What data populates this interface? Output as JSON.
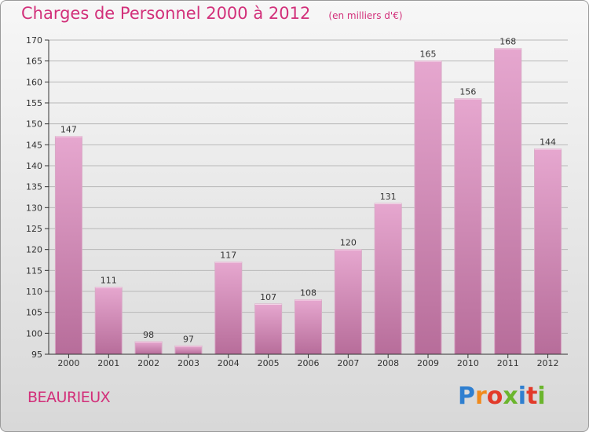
{
  "chart_data": {
    "type": "bar",
    "title": "Charges de Personnel 2000 à 2012",
    "subtitle": "(en milliers d'€)",
    "categories": [
      "2000",
      "2001",
      "2002",
      "2003",
      "2004",
      "2005",
      "2006",
      "2007",
      "2008",
      "2009",
      "2010",
      "2011",
      "2012"
    ],
    "values": [
      147,
      111,
      98,
      97,
      117,
      107,
      108,
      120,
      131,
      165,
      156,
      168,
      144
    ],
    "ylim": [
      95,
      170
    ],
    "yticks": [
      95,
      100,
      105,
      110,
      115,
      120,
      125,
      130,
      135,
      140,
      145,
      150,
      155,
      160,
      165,
      170
    ],
    "grid": true,
    "colors": {
      "bar_light": "#e6a7cf",
      "bar_dark": "#b76d9a",
      "title": "#d2307a"
    }
  },
  "footer": {
    "commune": "BEAURIEUX"
  },
  "logo": {
    "letters": [
      {
        "ch": "P",
        "color": "#2f7fd0"
      },
      {
        "ch": "r",
        "color": "#f08a1c"
      },
      {
        "ch": "o",
        "color": "#e23a2a"
      },
      {
        "ch": "x",
        "color": "#6bb52d"
      },
      {
        "ch": "i",
        "color": "#2f7fd0"
      },
      {
        "ch": "t",
        "color": "#e23a2a"
      },
      {
        "ch": "i",
        "color": "#6bb52d"
      }
    ]
  }
}
